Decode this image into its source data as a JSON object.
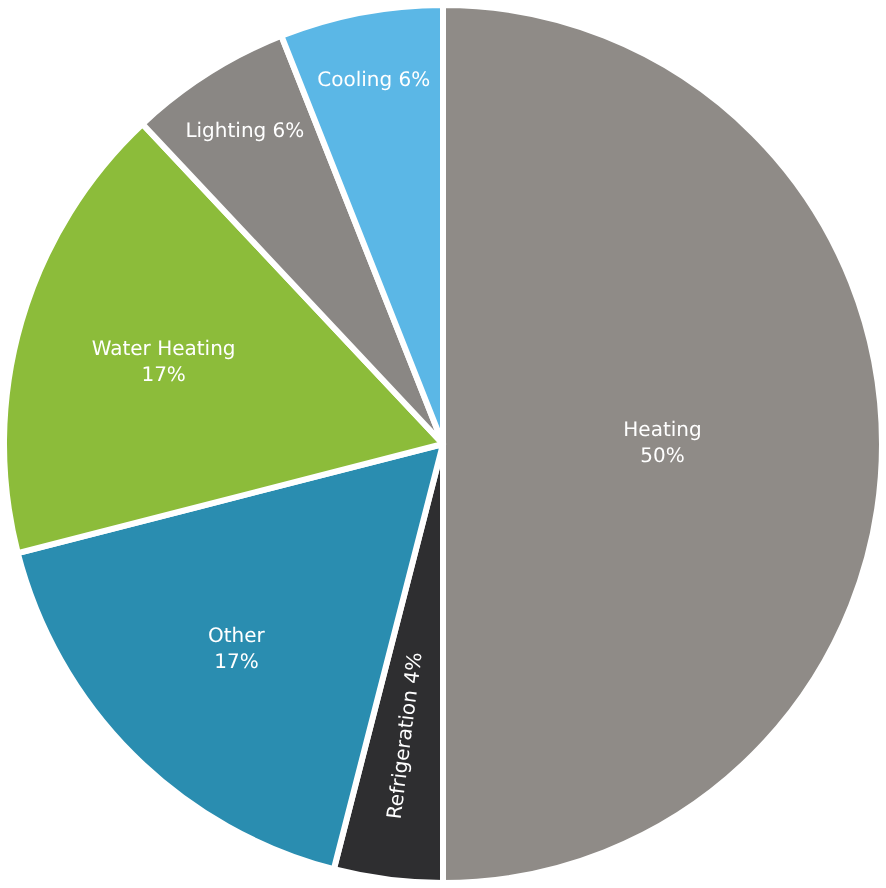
{
  "chart_data": {
    "type": "pie",
    "categories": [
      "Heating",
      "Refrigeration",
      "Other",
      "Water Heating",
      "Lighting",
      "Cooling"
    ],
    "values": [
      50,
      4,
      17,
      17,
      6,
      6
    ],
    "value_labels": [
      "50%",
      "4%",
      "17%",
      "17%",
      "6%",
      "6%"
    ],
    "colors": [
      "#8f8b87",
      "#2e2e30",
      "#2a8db0",
      "#8cbc3a",
      "#8a8784",
      "#5bb7e6"
    ]
  }
}
